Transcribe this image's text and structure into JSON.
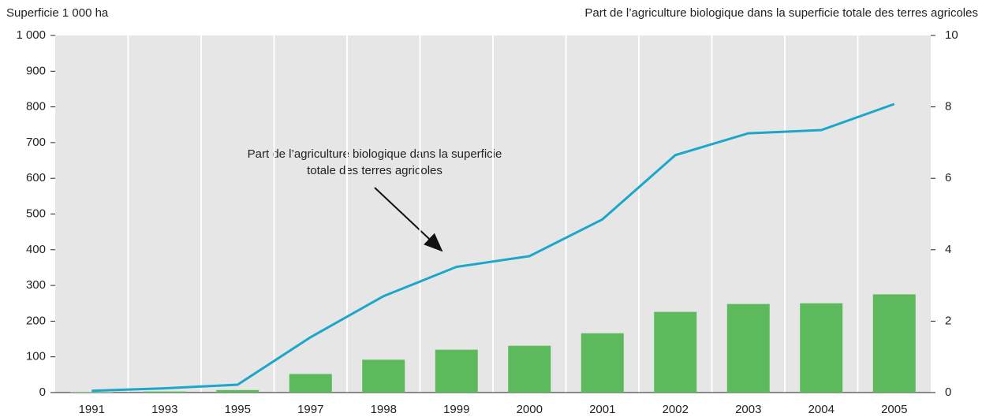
{
  "chart_data": {
    "type": "bar_line",
    "y_label": "Superficie 1 000 ha",
    "y2_label": "Part de l’agriculture biologique dans la superficie totale des terres  agricoles",
    "annotation": [
      "Part de l’agriculture biologique dans la superficie",
      "totale des terres agricoles"
    ],
    "categories": [
      "1991",
      "1993",
      "1995",
      "1997",
      "1998",
      "1999",
      "2000",
      "2001",
      "2002",
      "2003",
      "2004",
      "2005"
    ],
    "series": [
      {
        "type": "bar",
        "color": "#5cba5c",
        "values": [
          1,
          3,
          7,
          52,
          92,
          120,
          131,
          166,
          226,
          248,
          250,
          275
        ]
      },
      {
        "type": "line",
        "axis": "y2",
        "color": "#1ba6cc",
        "values": [
          0.05,
          0.12,
          0.22,
          1.55,
          2.7,
          3.52,
          3.82,
          4.85,
          6.65,
          7.26,
          7.35,
          8.08
        ]
      }
    ],
    "ylim": [
      0,
      1000
    ],
    "yticks": [
      0,
      100,
      200,
      300,
      400,
      500,
      600,
      700,
      800,
      900,
      {
        "value": 1000,
        "label": "1 000"
      }
    ],
    "y2lim": [
      0,
      10
    ],
    "y2ticks": [
      0,
      2,
      4,
      6,
      8,
      10
    ]
  }
}
